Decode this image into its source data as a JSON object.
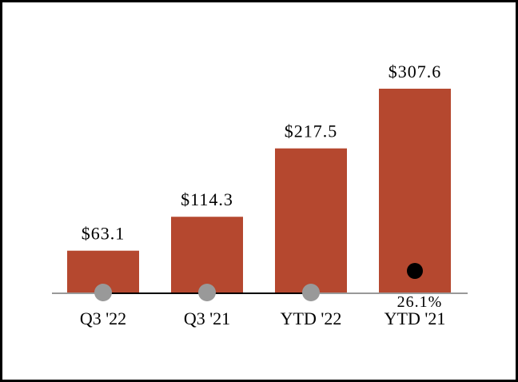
{
  "chart_data": {
    "type": "bar",
    "categories": [
      "Q3 '22",
      "Q3 '21",
      "YTD '22",
      "YTD '21"
    ],
    "values": [
      63.1,
      114.3,
      217.5,
      307.6
    ],
    "value_labels": [
      "$63.1",
      "$114.3",
      "$217.5",
      "$307.6"
    ],
    "ylim": [
      0,
      310
    ],
    "bar_color": "#B5482F",
    "overlay": {
      "type": "line",
      "markers": [
        {
          "category": "Q3 '22",
          "color": "#999999",
          "label": ""
        },
        {
          "category": "Q3 '21",
          "color": "#999999",
          "label": ""
        },
        {
          "category": "YTD '22",
          "color": "#999999",
          "label": ""
        },
        {
          "category": "YTD '21",
          "color": "#000000",
          "label": "26.1%"
        }
      ],
      "line_color": "#000000"
    },
    "title": "",
    "xlabel": "",
    "ylabel": "",
    "grid": false,
    "legend": "none"
  }
}
